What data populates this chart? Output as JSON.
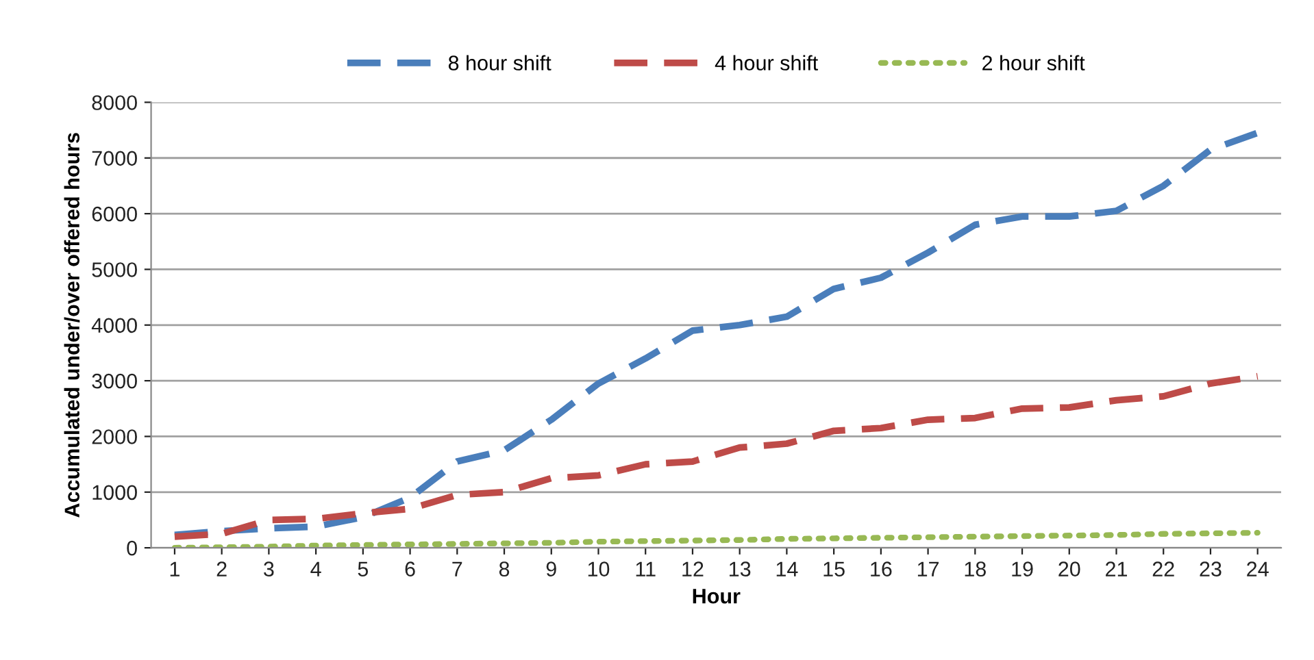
{
  "chart_data": {
    "type": "line",
    "xlabel": "Hour",
    "ylabel": "Accumulated under/over offered hours",
    "categories": [
      "1",
      "2",
      "3",
      "4",
      "5",
      "6",
      "7",
      "8",
      "9",
      "10",
      "11",
      "12",
      "13",
      "14",
      "15",
      "16",
      "17",
      "18",
      "19",
      "20",
      "21",
      "22",
      "23",
      "24"
    ],
    "ylim": [
      0,
      8000
    ],
    "yticks": [
      0,
      1000,
      2000,
      3000,
      4000,
      5000,
      6000,
      7000,
      8000
    ],
    "grid": "y",
    "legend": "top",
    "marker": "none",
    "series": [
      {
        "name": "8 hour shift",
        "color": "#4a7ebb",
        "line_style": "dashed",
        "values": [
          230,
          300,
          350,
          380,
          550,
          900,
          1550,
          1750,
          2300,
          2950,
          3400,
          3900,
          4000,
          4150,
          4650,
          4850,
          5300,
          5800,
          5950,
          5950,
          6050,
          6500,
          7150,
          7450
        ]
      },
      {
        "name": "4 hour shift",
        "color": "#be4b48",
        "line_style": "dashed",
        "values": [
          200,
          250,
          500,
          520,
          620,
          700,
          950,
          1000,
          1250,
          1300,
          1500,
          1550,
          1800,
          1870,
          2100,
          2150,
          2300,
          2330,
          2500,
          2520,
          2650,
          2720,
          2950,
          3080
        ]
      },
      {
        "name": "2 hour shift",
        "color": "#98b954",
        "line_style": "dotted",
        "values": [
          0,
          10,
          20,
          40,
          50,
          60,
          70,
          80,
          90,
          110,
          120,
          130,
          140,
          160,
          170,
          180,
          190,
          200,
          210,
          220,
          230,
          250,
          260,
          270
        ]
      }
    ]
  }
}
